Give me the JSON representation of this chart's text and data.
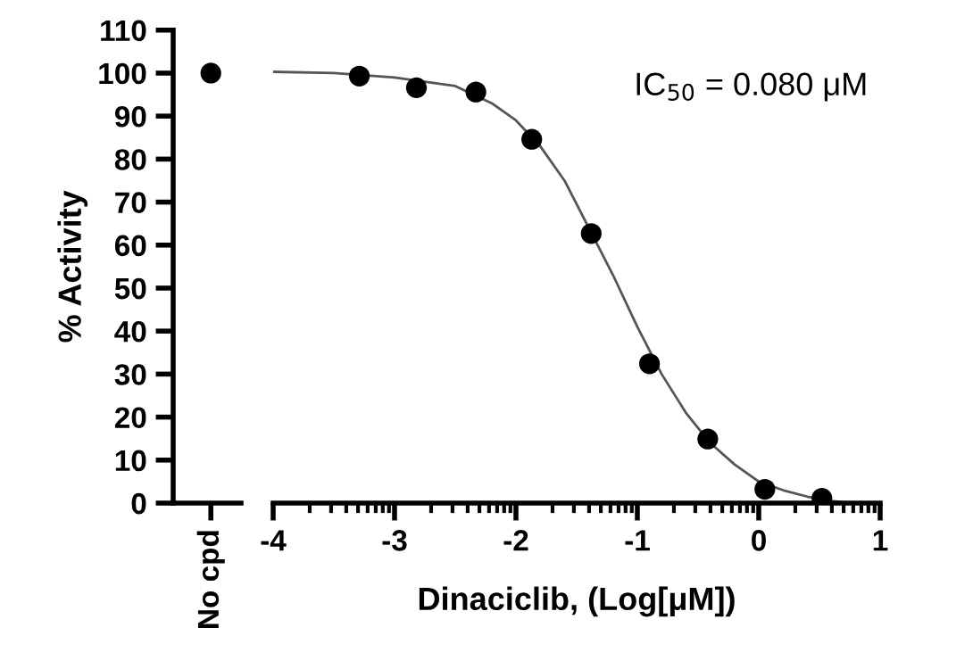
{
  "chart_data": [
    {
      "type": "scatter",
      "categories": [
        "No cpd"
      ],
      "ylabel": "% Activity",
      "ylim": [
        0,
        110
      ],
      "yticks": [
        0,
        10,
        20,
        30,
        40,
        50,
        60,
        70,
        80,
        90,
        100,
        110
      ],
      "marker": "circle",
      "tick_labels": "xy",
      "series": [
        {
          "color": "#000000",
          "values": [
            100
          ]
        }
      ]
    },
    {
      "type": "scatter",
      "xlabel": "Dinaciclib, (Log[μM])",
      "xlim": [
        -4,
        1
      ],
      "xticks": [
        -4,
        -3,
        -2,
        -1,
        0,
        1
      ],
      "ylim": [
        0,
        110
      ],
      "tick_labels": "x",
      "marker": "circle",
      "annotations": [
        "IC$_{50}$ = 0.080 μM"
      ],
      "series": [
        {
          "color": "#000000",
          "x": [
            -3.29,
            -2.82,
            -2.33,
            -1.87,
            -1.38,
            -0.9,
            -0.42,
            0.05,
            0.52
          ],
          "values": [
            99.3,
            96.6,
            95.6,
            84.6,
            62.7,
            32.4,
            14.9,
            3.2,
            1.1
          ]
        },
        {
          "type": "line",
          "color": "#555555",
          "marker": "none",
          "x": [
            -4,
            -3.5,
            -3,
            -2.5,
            -2.2,
            -2,
            -1.8,
            -1.6,
            -1.4,
            -1.2,
            -1,
            -0.8,
            -0.6,
            -0.4,
            -0.2,
            0,
            0.2,
            0.4,
            0.6,
            0.7
          ],
          "values": [
            100.3,
            100,
            99,
            97,
            93,
            89,
            83,
            75,
            64,
            53,
            41,
            30,
            21,
            14,
            9,
            5,
            3,
            1.5,
            0.5,
            0.2
          ]
        }
      ]
    }
  ]
}
